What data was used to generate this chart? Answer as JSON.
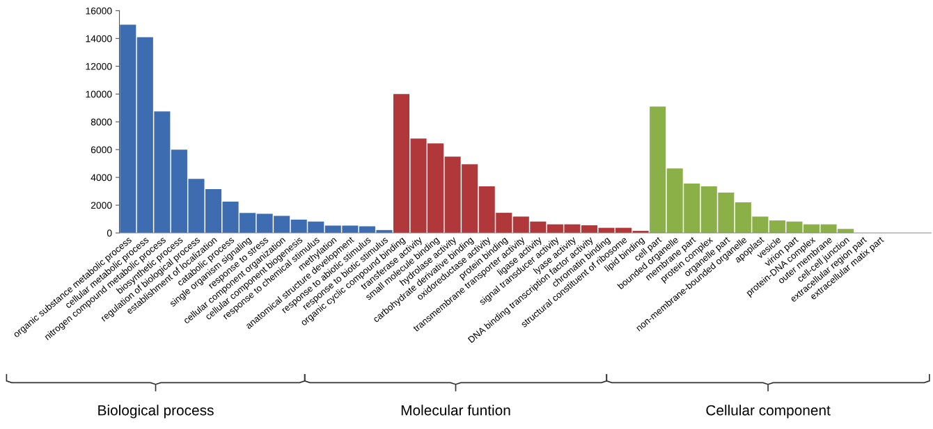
{
  "chart_data": {
    "type": "bar",
    "categories": [
      "organic substance metabolic process",
      "cellular metabolic process",
      "nitrogen compound metabolic process",
      "biosynthetic process",
      "regulation of biological process",
      "establishment of localization",
      "catabolic process",
      "single organism signaling",
      "response to stress",
      "cellular component organization",
      "cellular component biogenesis",
      "response to chemical stimulus",
      "methylation",
      "anatomical structure development",
      "response to abiotic stimulus",
      "response to biotic stimulus",
      "organic cyclic compound binding",
      "transferase activity",
      "small molecule binding",
      "hydrolase activity",
      "carbohydrate derivative binding",
      "oxidoreductase activity",
      "protein binding",
      "transmembrane transporter activity",
      "ligase activity",
      "signal transducer activity",
      "lyase activity",
      "DNA binding transcription factor activity",
      "chromatin binding",
      "structural constituent of ribosome",
      "lipid binding",
      "cell part",
      "bounded organelle",
      "membrane part",
      "protein complex",
      "organelle part",
      "non-membrane-bounded organelle",
      "apoplast",
      "vesicle",
      "virion part",
      "protein-DNA complex",
      "outer membrane",
      "cell-cell junction",
      "extracellular region part",
      "extracellular matix part"
    ],
    "values": [
      15000,
      14100,
      8750,
      6000,
      3900,
      3150,
      2250,
      1440,
      1380,
      1230,
      960,
      820,
      530,
      530,
      480,
      210,
      10000,
      6800,
      6450,
      5500,
      4950,
      3350,
      1450,
      1180,
      820,
      620,
      620,
      550,
      370,
      370,
      150,
      9100,
      4650,
      3550,
      3350,
      2900,
      2200,
      1180,
      900,
      820,
      620,
      620,
      290,
      0,
      0
    ],
    "colors": [
      "#3d6db0",
      "#3d6db0",
      "#3d6db0",
      "#3d6db0",
      "#3d6db0",
      "#3d6db0",
      "#3d6db0",
      "#3d6db0",
      "#3d6db0",
      "#3d6db0",
      "#3d6db0",
      "#3d6db0",
      "#3d6db0",
      "#3d6db0",
      "#3d6db0",
      "#3d6db0",
      "#b0383b",
      "#b0383b",
      "#b0383b",
      "#b0383b",
      "#b0383b",
      "#b0383b",
      "#b0383b",
      "#b0383b",
      "#b0383b",
      "#b0383b",
      "#b0383b",
      "#b0383b",
      "#b0383b",
      "#b0383b",
      "#b0383b",
      "#8cb048",
      "#8cb048",
      "#8cb048",
      "#8cb048",
      "#8cb048",
      "#8cb048",
      "#8cb048",
      "#8cb048",
      "#8cb048",
      "#8cb048",
      "#8cb048",
      "#8cb048",
      "#8cb048",
      "#8cb048"
    ],
    "ylim": [
      0,
      16000
    ],
    "yticks": [
      0,
      2000,
      4000,
      6000,
      8000,
      10000,
      12000,
      14000,
      16000
    ],
    "grid": false,
    "legend": false,
    "annotations": [
      "Biological process",
      "Molecular funtion",
      "Cellular component"
    ]
  }
}
